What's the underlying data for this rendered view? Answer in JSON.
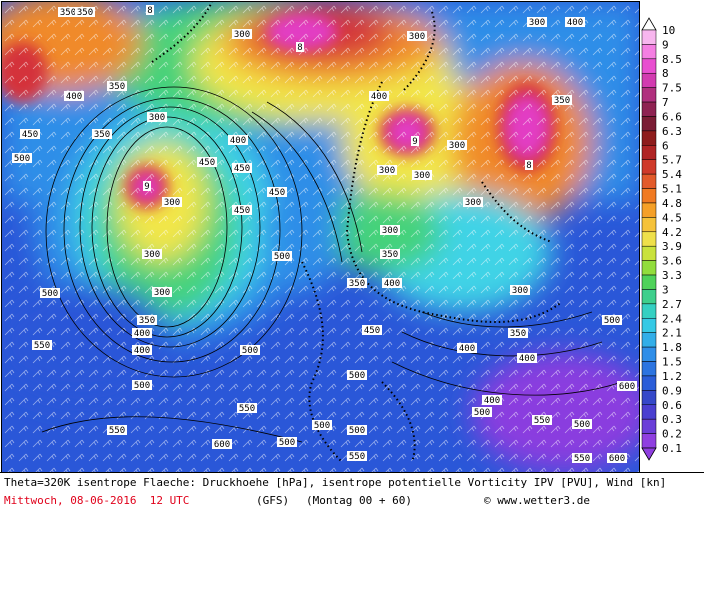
{
  "map": {
    "contour_labels": [
      "300",
      "350",
      "400",
      "450",
      "500",
      "550",
      "600"
    ],
    "colors": {
      "deep_blue": "#2a57d8",
      "mid_blue": "#2f8ee8",
      "cyan": "#3fd3e6",
      "green": "#44d27a",
      "yellow": "#f2e64a",
      "orange": "#f08a2a",
      "red": "#d4313a",
      "magenta": "#e23dc4",
      "purple": "#8a3ddf"
    }
  },
  "legend": {
    "labels": [
      "10",
      "9",
      "8.5",
      "8",
      "7.5",
      "7",
      "6.6",
      "6.3",
      "6",
      "5.7",
      "5.4",
      "5.1",
      "4.8",
      "4.5",
      "4.2",
      "3.9",
      "3.6",
      "3.3",
      "3",
      "2.7",
      "2.4",
      "2.1",
      "1.8",
      "1.5",
      "1.2",
      "0.9",
      "0.6",
      "0.3",
      "0.2",
      "0.1"
    ],
    "colors": [
      "#ffffff",
      "#f7b6ee",
      "#f47fe2",
      "#e84fd0",
      "#d23bb0",
      "#b0307e",
      "#8e2252",
      "#7a1c34",
      "#8e1c1c",
      "#b02424",
      "#cf3a2a",
      "#e25a2a",
      "#f07a22",
      "#f5a028",
      "#f5c23a",
      "#efe04a",
      "#c9e23c",
      "#92dd3c",
      "#4fd25a",
      "#3ecf8c",
      "#35d0c2",
      "#35c9e5",
      "#32aee8",
      "#2f8ee8",
      "#2c74e0",
      "#2a5dd8",
      "#3548c9",
      "#4a3fd0",
      "#6a3ed8",
      "#8f3fe0"
    ]
  },
  "caption": {
    "line1": "Theta=320K isentrope Flaeche: Druckhoehe [hPa], isentrope potentielle Vorticity IPV [PVU], Wind [kn]",
    "date": "Mittwoch, 08-06-2016  12 UTC",
    "model": "(GFS)",
    "run": "(Montag 00 + 60)",
    "copyright": "© www.wetter3.de"
  }
}
